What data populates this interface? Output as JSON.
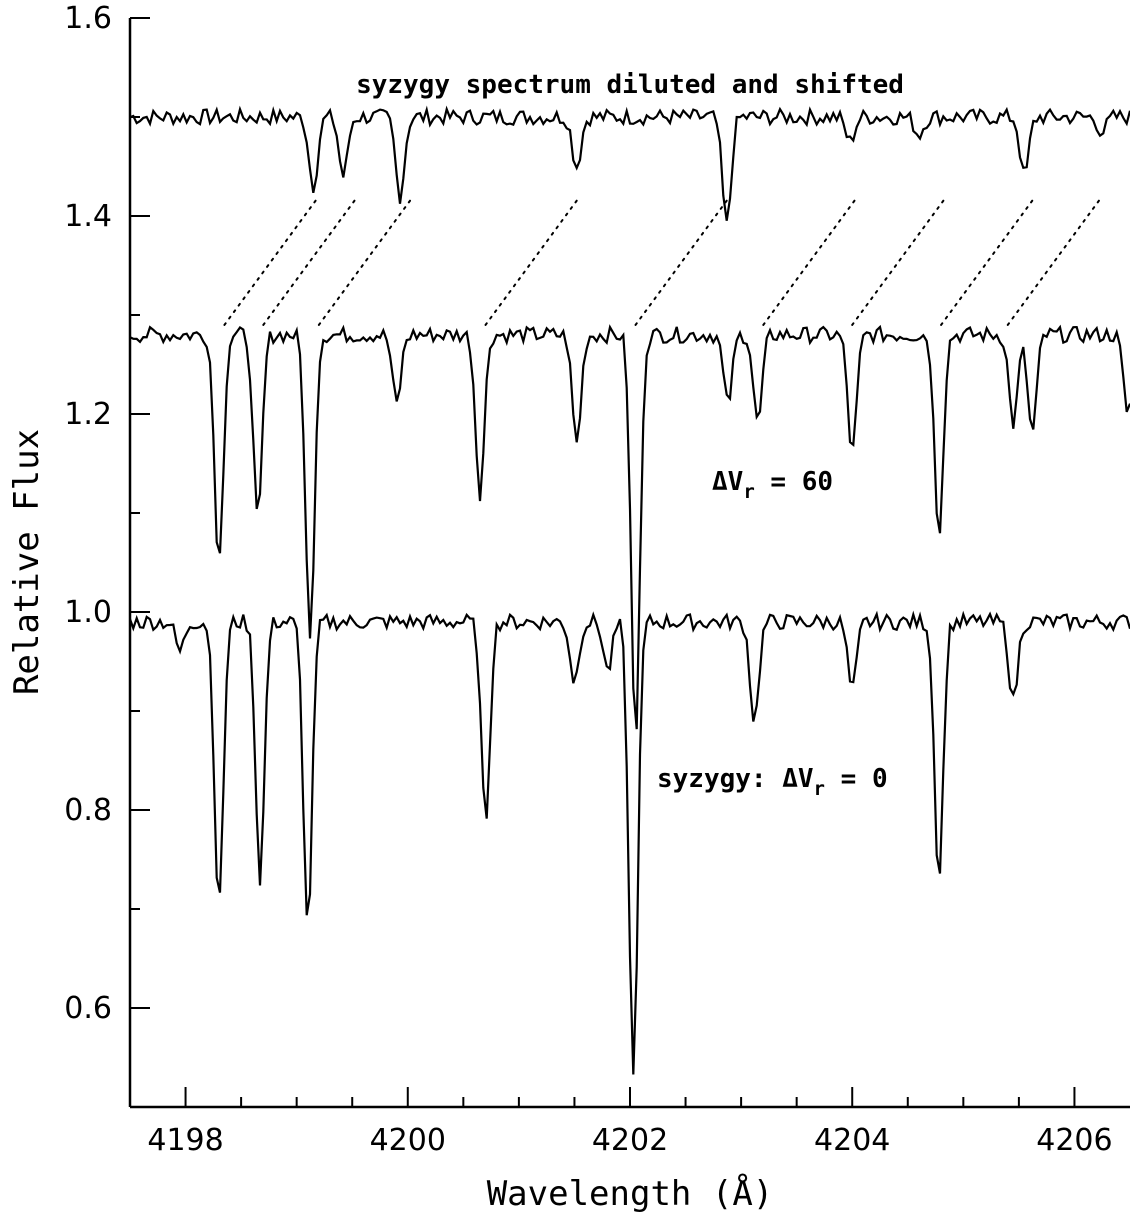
{
  "chart_data": {
    "type": "line",
    "title": "",
    "xlabel": "Wavelength (Å)",
    "ylabel": "Relative Flux",
    "xlim": [
      4197.5,
      4206.5
    ],
    "ylim": [
      0.5,
      1.6
    ],
    "x_ticks": [
      "4198",
      "4200",
      "4202",
      "4204",
      "4206"
    ],
    "x_tick_values": [
      4198,
      4200,
      4202,
      4204,
      4206
    ],
    "y_ticks": [
      "0.6",
      "0.8",
      "1.0",
      "1.2",
      "1.4",
      "1.6"
    ],
    "y_tick_values": [
      0.6,
      0.8,
      1.0,
      1.2,
      1.4,
      1.6
    ],
    "grid": false,
    "color": "#000000",
    "annotations": {
      "top": "syzygy spectrum diluted and shifted",
      "middle_prefix": "ΔV",
      "middle_sub": "r",
      "middle_suffix": " = 60",
      "bottom_prefix": "syzygy: ΔV",
      "bottom_sub": "r",
      "bottom_suffix": " = 0"
    },
    "series": [
      {
        "continuum": 1.5,
        "lines": [
          [
            4199.15,
            0.07
          ],
          [
            4199.42,
            0.06
          ],
          [
            4199.93,
            0.08
          ],
          [
            4201.52,
            0.05
          ],
          [
            4202.87,
            0.11
          ],
          [
            4203.98,
            0.025
          ],
          [
            4204.6,
            0.018
          ],
          [
            4205.55,
            0.06
          ],
          [
            4206.25,
            0.015
          ]
        ]
      },
      {
        "continuum": 1.28,
        "lines": [
          [
            4198.3,
            0.23
          ],
          [
            4198.65,
            0.19
          ],
          [
            4199.12,
            0.31
          ],
          [
            4199.9,
            0.07
          ],
          [
            4200.65,
            0.16
          ],
          [
            4201.52,
            0.11
          ],
          [
            4202.05,
            0.41
          ],
          [
            4202.88,
            0.07
          ],
          [
            4203.15,
            0.09
          ],
          [
            4204.0,
            0.12
          ],
          [
            4204.78,
            0.2
          ],
          [
            4205.45,
            0.09
          ],
          [
            4205.62,
            0.1
          ],
          [
            4206.48,
            0.08
          ]
        ]
      },
      {
        "continuum": 0.99,
        "lines": [
          [
            4197.95,
            0.03
          ],
          [
            4198.3,
            0.29
          ],
          [
            4198.67,
            0.26
          ],
          [
            4199.1,
            0.31
          ],
          [
            4200.7,
            0.2
          ],
          [
            4201.5,
            0.06
          ],
          [
            4201.8,
            0.05
          ],
          [
            4202.03,
            0.46
          ],
          [
            4203.12,
            0.1
          ],
          [
            4204.0,
            0.07
          ],
          [
            4204.78,
            0.26
          ],
          [
            4205.45,
            0.08
          ]
        ]
      }
    ],
    "connectors": [
      [
        4198.35,
        1.29,
        4199.2,
        1.42
      ],
      [
        4198.7,
        1.29,
        4199.55,
        1.42
      ],
      [
        4199.2,
        1.29,
        4200.05,
        1.42
      ],
      [
        4200.7,
        1.29,
        4201.55,
        1.42
      ],
      [
        4202.05,
        1.29,
        4202.9,
        1.42
      ],
      [
        4203.2,
        1.29,
        4204.05,
        1.42
      ],
      [
        4204.0,
        1.29,
        4204.85,
        1.42
      ],
      [
        4204.8,
        1.29,
        4205.65,
        1.42
      ],
      [
        4205.4,
        1.29,
        4206.25,
        1.42
      ]
    ]
  }
}
